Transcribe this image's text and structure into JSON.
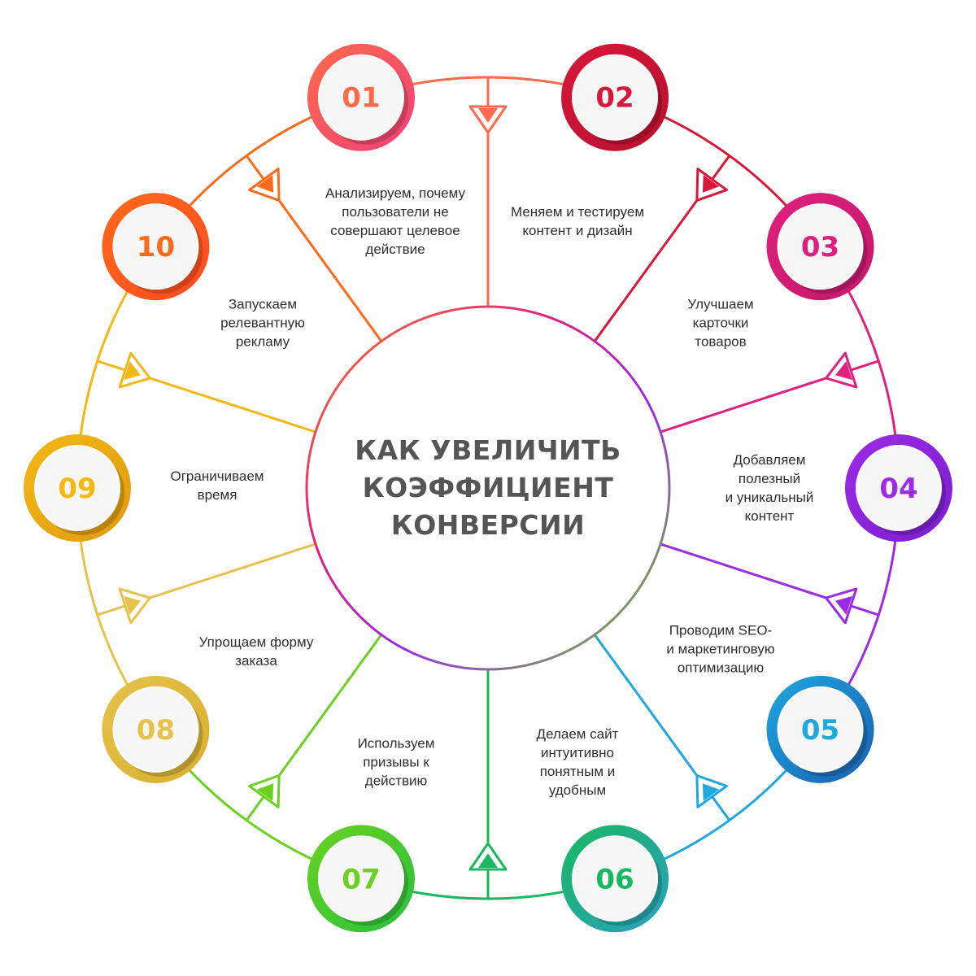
{
  "title": "КАК УВЕЛИЧИТЬ\nКОЭФФИЦИЕНТ\nКОНВЕРСИИ",
  "steps": [
    {
      "number": "01",
      "text": "Анализируем, почему\nпользователи не\nсовершают целевое\nдействие",
      "color": "#ff6a4a",
      "color2": "#f0407a"
    },
    {
      "number": "02",
      "text": "Меняем и тестируем\nконтент и дизайн",
      "color": "#d8173a",
      "color2": "#b8102e"
    },
    {
      "number": "03",
      "text": "Улучшаем\nкарточки\nтоваров",
      "color": "#e0207e",
      "color2": "#c2186a"
    },
    {
      "number": "04",
      "text": "Добавляем\nполезный\nи уникальный\nконтент",
      "color": "#9c2be6",
      "color2": "#7a1ed0"
    },
    {
      "number": "05",
      "text": "Проводим SEO-\nи маркетинговую\nоптимизацию",
      "color": "#1ea8e0",
      "color2": "#1a5fb0"
    },
    {
      "number": "06",
      "text": "Делаем сайт\nинтуитивно\nпонятным и\nудобным",
      "color": "#18b860",
      "color2": "#2aa0c0"
    },
    {
      "number": "07",
      "text": "Используем\nпризывы к\nдействию",
      "color": "#6ad21e",
      "color2": "#28c040"
    },
    {
      "number": "08",
      "text": "Упрощаем форму\nзаказа",
      "color": "#e6c24a",
      "color2": "#d8b030"
    },
    {
      "number": "09",
      "text": "Ограничиваем\nвремя",
      "color": "#f3b814",
      "color2": "#e09a10"
    },
    {
      "number": "10",
      "text": "Запускаем\nрелевантную\nрекламу",
      "color": "#ff6a1a",
      "color2": "#ff4a20"
    }
  ]
}
